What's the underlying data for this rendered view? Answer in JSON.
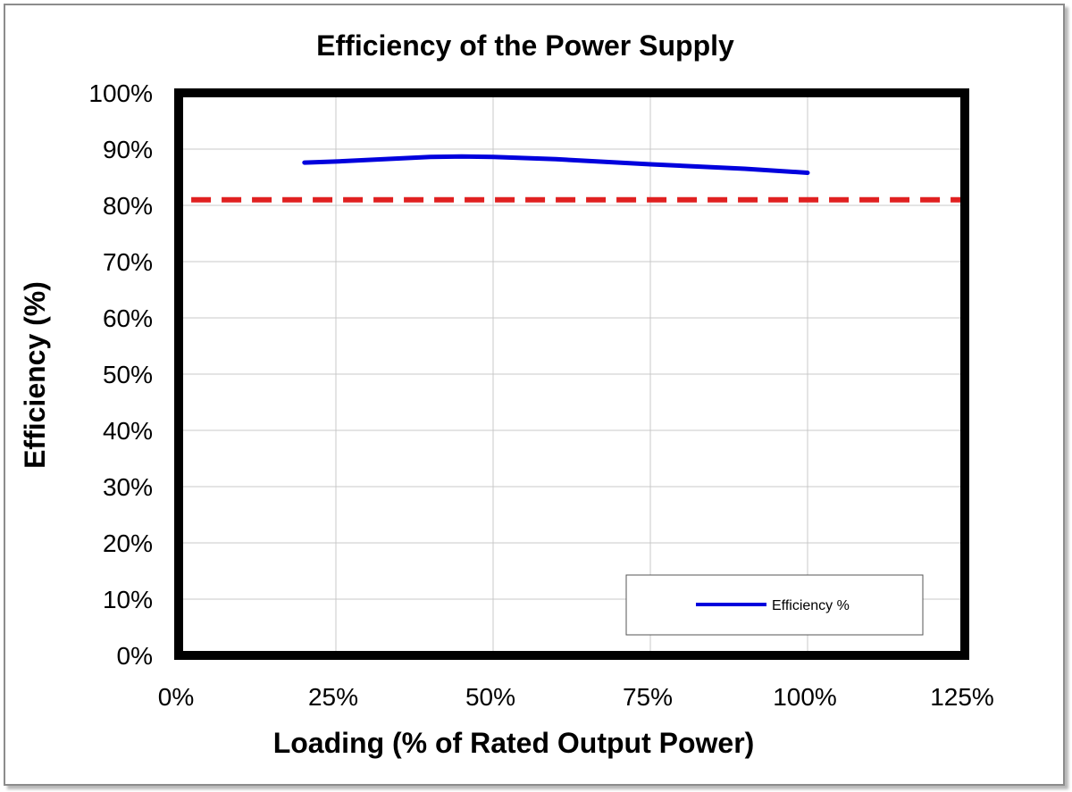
{
  "chart_data": {
    "type": "line",
    "title": "Efficiency of the Power Supply",
    "xlabel": "Loading (% of Rated Output Power)",
    "ylabel": "Efficiency (%)",
    "xlim": [
      0,
      125
    ],
    "ylim": [
      0,
      100
    ],
    "x_ticks": [
      "0%",
      "25%",
      "50%",
      "75%",
      "100%",
      "125%"
    ],
    "y_ticks": [
      "0%",
      "10%",
      "20%",
      "30%",
      "40%",
      "50%",
      "60%",
      "70%",
      "80%",
      "90%",
      "100%"
    ],
    "x_tick_values": [
      0,
      25,
      50,
      75,
      100,
      125
    ],
    "y_tick_values": [
      0,
      10,
      20,
      30,
      40,
      50,
      60,
      70,
      80,
      90,
      100
    ],
    "grid": true,
    "legend_position": "bottom-right",
    "series": [
      {
        "name": "Efficiency %",
        "color": "#0000dd",
        "x": [
          20,
          25,
          40,
          45,
          50,
          60,
          75,
          90,
          100
        ],
        "y": [
          87.6,
          87.8,
          88.6,
          88.7,
          88.6,
          88.2,
          87.3,
          86.5,
          85.8
        ]
      }
    ],
    "reference_line": {
      "y": 81,
      "color": "#e02020",
      "style": "dashed",
      "x_range": [
        2,
        125
      ]
    }
  }
}
